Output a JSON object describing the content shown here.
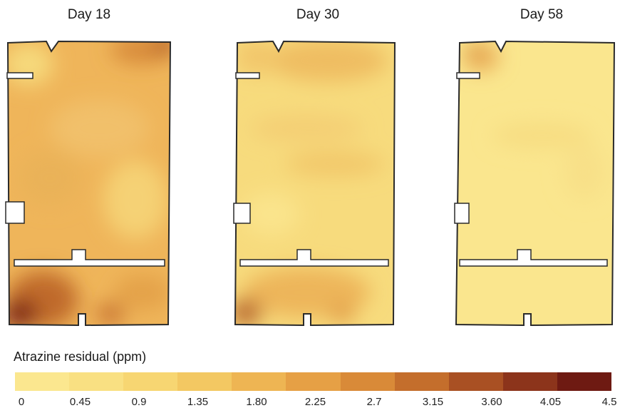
{
  "panels": [
    {
      "title": "Day 18",
      "level": "high",
      "hotspot": "bottom-left"
    },
    {
      "title": "Day 30",
      "level": "medium",
      "hotspot": "bottom-left"
    },
    {
      "title": "Day 58",
      "level": "low",
      "hotspot": "top-left"
    }
  ],
  "legend": {
    "title": "Atrazine residual (ppm)",
    "ticks": [
      "0",
      "0.45",
      "0.9",
      "1.35",
      "1.80",
      "2.25",
      "2.7",
      "3.15",
      "3.60",
      "4.05",
      "4.5"
    ],
    "colors": [
      "#fbe78f",
      "#f9e082",
      "#f7d672",
      "#f3c862",
      "#eeb553",
      "#e6a045",
      "#d98a38",
      "#c46e2c",
      "#a95023",
      "#8c341b",
      "#6e1a12"
    ]
  }
}
